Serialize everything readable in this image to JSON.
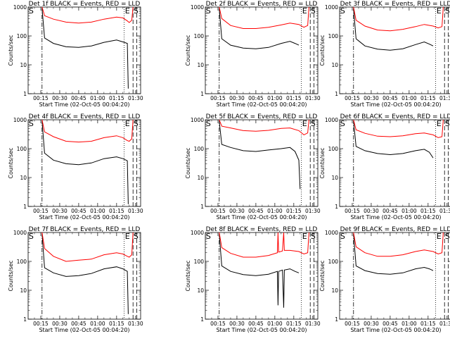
{
  "chart_data": [
    {
      "type": "line",
      "title": "Det 1f BLACK = Events, RED = LLD",
      "xlabel": "Start Time (02-Oct-05 00:04:20)",
      "ylabel": "Counts/sec",
      "yscale": "log",
      "ylim": [
        1,
        1000
      ],
      "x_ticks": [
        "00:15",
        "00:30",
        "00:45",
        "01:00",
        "01:15",
        "01:30"
      ],
      "y_ticks": [
        "1",
        "10",
        "100",
        "1000"
      ],
      "markers": [
        "S",
        "E",
        "S"
      ],
      "series": [
        {
          "name": "Events",
          "color": "#000000",
          "x": [
            16,
            18,
            25,
            35,
            45,
            55,
            65,
            75,
            80,
            83.5,
            84.2
          ],
          "y": [
            900,
            85,
            55,
            42,
            40,
            45,
            60,
            72,
            62,
            55,
            1.5
          ]
        },
        {
          "name": "LLD",
          "color": "#ff0000",
          "x": [
            16,
            18,
            25,
            35,
            45,
            55,
            65,
            75,
            80,
            83.5,
            85,
            87,
            88
          ],
          "y": [
            1000,
            500,
            380,
            300,
            280,
            300,
            380,
            450,
            420,
            330,
            290,
            350,
            1000
          ]
        }
      ]
    },
    {
      "type": "line",
      "title": "Det 2f BLACK = Events, RED = LLD",
      "xlabel": "Start Time (02-Oct-05 00:04:20)",
      "ylabel": "Counts/sec",
      "yscale": "log",
      "ylim": [
        1,
        1000
      ],
      "x_ticks": [
        "00:15",
        "00:30",
        "00:45",
        "01:00",
        "01:15",
        "01:30"
      ],
      "y_ticks": [
        "1",
        "10",
        "100",
        "1000"
      ],
      "markers": [
        "S",
        "E",
        "S"
      ],
      "series": [
        {
          "name": "Events",
          "color": "#000000",
          "x": [
            16,
            18,
            25,
            35,
            45,
            55,
            65,
            72,
            76,
            79
          ],
          "y": [
            900,
            80,
            48,
            38,
            36,
            40,
            55,
            65,
            55,
            48
          ]
        },
        {
          "name": "LLD",
          "color": "#ff0000",
          "x": [
            16,
            18,
            25,
            35,
            45,
            55,
            65,
            72,
            79,
            83,
            86,
            87
          ],
          "y": [
            1000,
            400,
            230,
            180,
            180,
            200,
            240,
            280,
            250,
            200,
            230,
            1000
          ]
        }
      ]
    },
    {
      "type": "line",
      "title": "Det 3f BLACK = Events, RED = LLD",
      "xlabel": "Start Time (02-Oct-05 00:04:20)",
      "ylabel": "Counts/sec",
      "yscale": "log",
      "ylim": [
        1,
        1000
      ],
      "x_ticks": [
        "00:15",
        "00:30",
        "00:45",
        "01:00",
        "01:15",
        "01:30"
      ],
      "y_ticks": [
        "1",
        "10",
        "100",
        "1000"
      ],
      "markers": [
        "S",
        "E",
        "S"
      ],
      "series": [
        {
          "name": "Events",
          "color": "#000000",
          "x": [
            16,
            18,
            25,
            35,
            45,
            55,
            65,
            72,
            76,
            79
          ],
          "y": [
            900,
            80,
            45,
            35,
            32,
            36,
            50,
            62,
            52,
            45
          ]
        },
        {
          "name": "LLD",
          "color": "#ff0000",
          "x": [
            16,
            18,
            25,
            35,
            45,
            55,
            65,
            72,
            79,
            83,
            86,
            87
          ],
          "y": [
            1000,
            350,
            220,
            160,
            150,
            170,
            210,
            250,
            220,
            190,
            210,
            1000
          ]
        }
      ]
    },
    {
      "type": "line",
      "title": "Det 4f BLACK = Events, RED = LLD",
      "xlabel": "Start Time (02-Oct-05 00:04:20)",
      "ylabel": "Counts/sec",
      "yscale": "log",
      "ylim": [
        1,
        1000
      ],
      "x_ticks": [
        "00:15",
        "00:30",
        "00:45",
        "01:00",
        "01:15",
        "01:30"
      ],
      "y_ticks": [
        "1",
        "10",
        "100",
        "1000"
      ],
      "markers": [
        "S",
        "E",
        "S"
      ],
      "series": [
        {
          "name": "Events",
          "color": "#000000",
          "x": [
            16,
            18,
            25,
            35,
            45,
            55,
            65,
            75,
            80,
            83.5,
            84.2
          ],
          "y": [
            900,
            70,
            40,
            30,
            28,
            32,
            45,
            52,
            45,
            38,
            1.2
          ]
        },
        {
          "name": "LLD",
          "color": "#ff0000",
          "x": [
            16,
            18,
            25,
            35,
            45,
            55,
            65,
            75,
            80,
            83.5,
            85,
            87,
            88
          ],
          "y": [
            1000,
            380,
            260,
            180,
            170,
            180,
            240,
            280,
            240,
            190,
            180,
            220,
            1000
          ]
        }
      ]
    },
    {
      "type": "line",
      "title": "Det 5f BLACK = Events, RED = LLD",
      "xlabel": "Start Time (02-Oct-05 00:04:20)",
      "ylabel": "Counts/sec",
      "yscale": "log",
      "ylim": [
        1,
        1000
      ],
      "x_ticks": [
        "00:15",
        "00:30",
        "00:45",
        "01:00",
        "01:15",
        "01:30"
      ],
      "y_ticks": [
        "1",
        "10",
        "100",
        "1000"
      ],
      "markers": [
        "S",
        "E",
        "S"
      ],
      "series": [
        {
          "name": "Events",
          "color": "#000000",
          "x": [
            16,
            18,
            25,
            35,
            45,
            55,
            65,
            72,
            76,
            79,
            80
          ],
          "y": [
            900,
            140,
            110,
            85,
            80,
            90,
            100,
            110,
            80,
            40,
            4
          ]
        },
        {
          "name": "LLD",
          "color": "#ff0000",
          "x": [
            16,
            18,
            25,
            35,
            45,
            55,
            65,
            72,
            79,
            83,
            86,
            87
          ],
          "y": [
            1000,
            600,
            520,
            420,
            400,
            430,
            500,
            520,
            420,
            300,
            350,
            1000
          ]
        }
      ]
    },
    {
      "type": "line",
      "title": "Det 6f BLACK = Events, RED = LLD",
      "xlabel": "Start Time (02-Oct-05 00:04:20)",
      "ylabel": "Counts/sec",
      "yscale": "log",
      "ylim": [
        1,
        1000
      ],
      "x_ticks": [
        "00:15",
        "00:30",
        "00:45",
        "01:00",
        "01:15",
        "01:30"
      ],
      "y_ticks": [
        "1",
        "10",
        "100",
        "1000"
      ],
      "markers": [
        "S",
        "E",
        "S"
      ],
      "series": [
        {
          "name": "Events",
          "color": "#000000",
          "x": [
            16,
            18,
            25,
            35,
            45,
            55,
            65,
            72,
            76,
            79
          ],
          "y": [
            900,
            120,
            85,
            68,
            62,
            68,
            85,
            95,
            75,
            48
          ]
        },
        {
          "name": "LLD",
          "color": "#ff0000",
          "x": [
            16,
            18,
            25,
            35,
            45,
            55,
            65,
            72,
            79,
            83,
            86,
            87
          ],
          "y": [
            1000,
            450,
            340,
            270,
            260,
            280,
            330,
            350,
            300,
            240,
            260,
            1000
          ]
        }
      ]
    },
    {
      "type": "line",
      "title": "Det 7f BLACK = Events, RED = LLD",
      "xlabel": "Start Time (02-Oct-05 00:04:20)",
      "ylabel": "Counts/sec",
      "yscale": "log",
      "ylim": [
        1,
        1000
      ],
      "x_ticks": [
        "00:15",
        "00:30",
        "00:45",
        "01:00",
        "01:15",
        "01:30"
      ],
      "y_ticks": [
        "1",
        "10",
        "100",
        "1000"
      ],
      "markers": [
        "S",
        "E",
        "S"
      ],
      "series": [
        {
          "name": "Events",
          "color": "#000000",
          "x": [
            16,
            18,
            25,
            35,
            45,
            55,
            65,
            75,
            80,
            83.5,
            84.2
          ],
          "y": [
            900,
            60,
            40,
            30,
            32,
            38,
            55,
            65,
            55,
            45,
            1.5
          ]
        },
        {
          "name": "LLD",
          "color": "#ff0000",
          "x": [
            16,
            18,
            25,
            35,
            45,
            55,
            65,
            75,
            80,
            83.5,
            85,
            87,
            88
          ],
          "y": [
            1000,
            280,
            150,
            100,
            110,
            120,
            170,
            200,
            180,
            150,
            140,
            170,
            1000
          ]
        }
      ]
    },
    {
      "type": "line",
      "title": "Det 8f BLACK = Events, RED = LLD",
      "xlabel": "Start Time (02-Oct-05 00:04:20)",
      "ylabel": "Counts/sec",
      "yscale": "log",
      "ylim": [
        1,
        1000
      ],
      "x_ticks": [
        "00:15",
        "00:30",
        "00:45",
        "01:00",
        "01:15",
        "01:30"
      ],
      "y_ticks": [
        "1",
        "10",
        "100",
        "1000"
      ],
      "markers": [
        "S",
        "E",
        "S"
      ],
      "series": [
        {
          "name": "Events",
          "color": "#000000",
          "x": [
            16,
            18,
            25,
            35,
            45,
            55,
            62,
            62.5,
            63,
            66,
            67,
            67.5,
            72,
            76,
            79
          ],
          "y": [
            900,
            70,
            45,
            35,
            32,
            36,
            45,
            3,
            45,
            50,
            2.5,
            50,
            55,
            45,
            40
          ]
        },
        {
          "name": "LLD",
          "color": "#ff0000",
          "x": [
            16,
            18,
            25,
            35,
            45,
            55,
            62,
            62.5,
            63,
            66,
            67,
            67.5,
            72,
            79,
            83,
            86,
            87
          ],
          "y": [
            1000,
            300,
            190,
            140,
            140,
            160,
            200,
            1000,
            210,
            230,
            1000,
            240,
            240,
            220,
            180,
            200,
            1000
          ]
        }
      ]
    },
    {
      "type": "line",
      "title": "Det 9f BLACK = Events, RED = LLD",
      "xlabel": "Start Time (02-Oct-05 00:04:20)",
      "ylabel": "Counts/sec",
      "yscale": "log",
      "ylim": [
        1,
        1000
      ],
      "x_ticks": [
        "00:15",
        "00:30",
        "00:45",
        "01:00",
        "01:15",
        "01:30"
      ],
      "y_ticks": [
        "1",
        "10",
        "100",
        "1000"
      ],
      "markers": [
        "S",
        "E",
        "S"
      ],
      "series": [
        {
          "name": "Events",
          "color": "#000000",
          "x": [
            16,
            18,
            25,
            35,
            45,
            55,
            65,
            72,
            76,
            79
          ],
          "y": [
            900,
            70,
            48,
            38,
            36,
            40,
            55,
            62,
            55,
            48
          ]
        },
        {
          "name": "LLD",
          "color": "#ff0000",
          "x": [
            16,
            18,
            25,
            35,
            45,
            55,
            65,
            72,
            79,
            83,
            86,
            87
          ],
          "y": [
            1000,
            320,
            200,
            150,
            150,
            170,
            220,
            250,
            220,
            180,
            200,
            1000
          ]
        }
      ]
    }
  ]
}
